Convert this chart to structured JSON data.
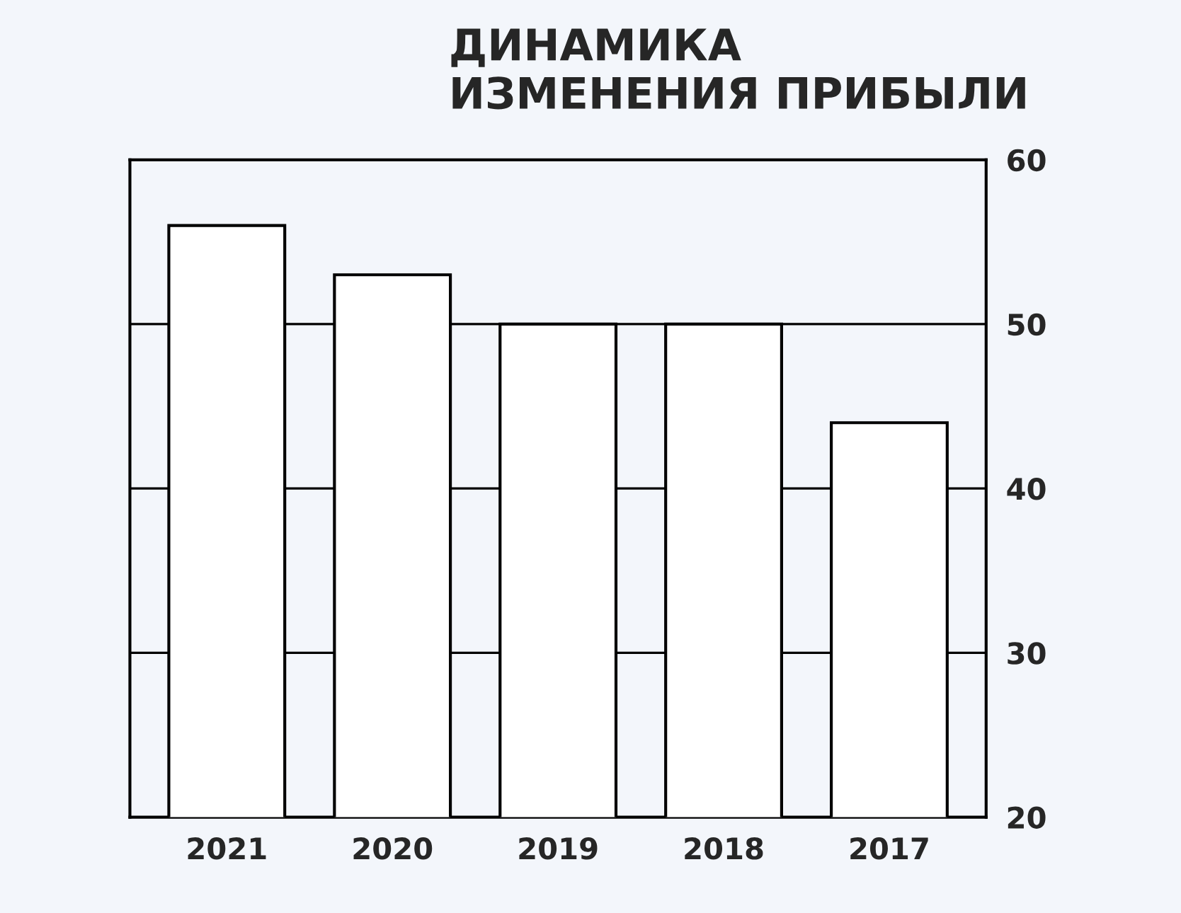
{
  "chart_data": {
    "type": "bar",
    "title": "ДИНАМИКА\nИЗМЕНЕНИЯ ПРИБЫЛИ",
    "categories": [
      "2021",
      "2020",
      "2019",
      "2018",
      "2017"
    ],
    "values": [
      56,
      53,
      50,
      50,
      44
    ],
    "color": "#ffffff",
    "ylim": [
      20,
      60
    ],
    "yticks": [
      20,
      30,
      40,
      50,
      60
    ],
    "grid": "y"
  }
}
